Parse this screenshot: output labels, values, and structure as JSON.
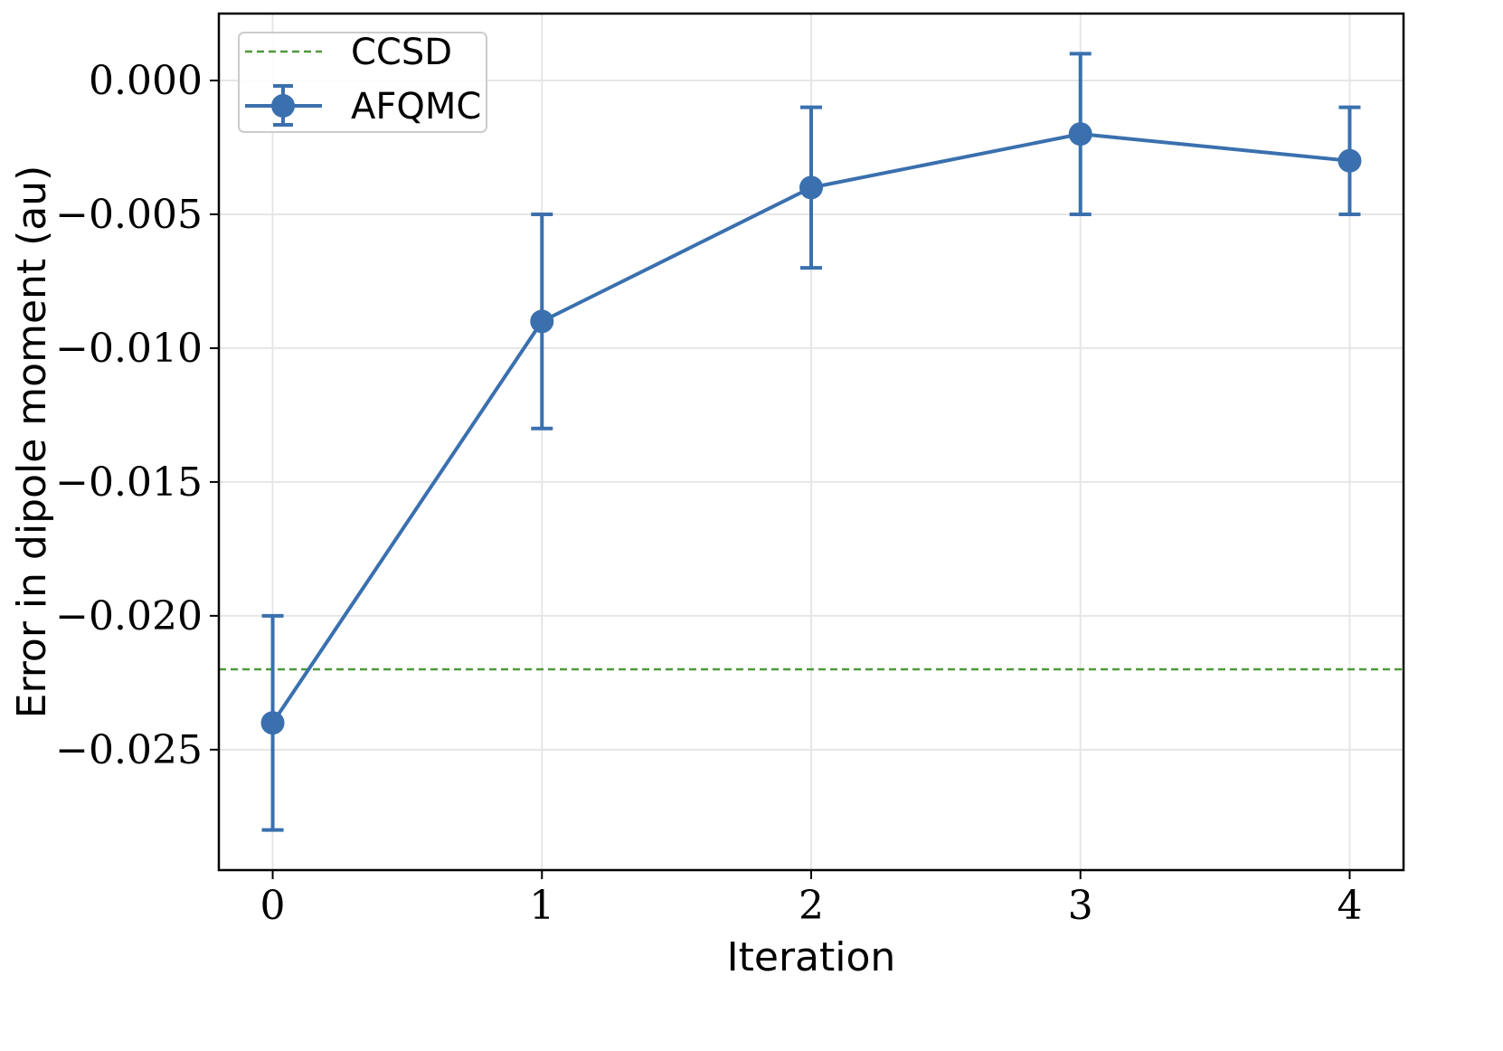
{
  "chart_data": {
    "type": "line",
    "title": "",
    "xlabel": "Iteration",
    "ylabel": "Error in dipole moment (au)",
    "x": [
      0,
      1,
      2,
      3,
      4
    ],
    "xlim": [
      -0.2,
      4.2
    ],
    "ylim": [
      -0.0295,
      0.0025
    ],
    "x_ticks": [
      0,
      1,
      2,
      3,
      4
    ],
    "x_tick_labels": [
      "0",
      "1",
      "2",
      "3",
      "4"
    ],
    "y_ticks": [
      0.0,
      -0.005,
      -0.01,
      -0.015,
      -0.02,
      -0.025
    ],
    "y_tick_labels": [
      "0.000",
      "−0.005",
      "−0.010",
      "−0.015",
      "−0.020",
      "−0.025"
    ],
    "grid": true,
    "legend_position": "top-left",
    "series": [
      {
        "name": "AFQMC",
        "style": "line-with-markers-and-errorbars",
        "color": "#3a70ae",
        "values": [
          -0.024,
          -0.009,
          -0.004,
          -0.002,
          -0.003
        ],
        "errors": [
          0.004,
          0.004,
          0.003,
          0.003,
          0.002
        ]
      }
    ],
    "reference_lines": [
      {
        "name": "CCSD",
        "orientation": "horizontal",
        "value": -0.022,
        "style": "dashed",
        "color": "#4e9a3a"
      }
    ],
    "legend": [
      {
        "label": "CCSD"
      },
      {
        "label": "AFQMC"
      }
    ]
  }
}
